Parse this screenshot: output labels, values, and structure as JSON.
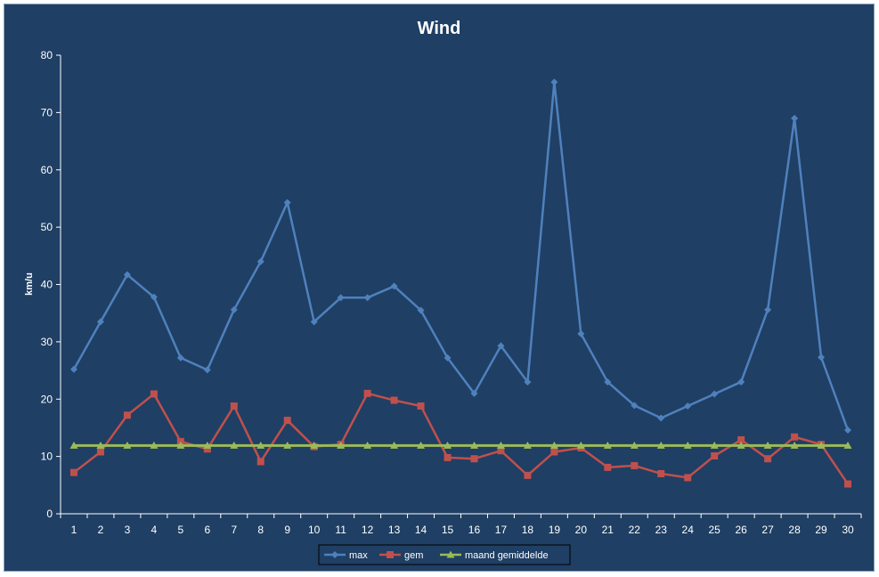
{
  "chart_data": {
    "type": "line",
    "title": "Wind",
    "xlabel": "",
    "ylabel": "km/u",
    "ylim": [
      0,
      80
    ],
    "yticks": [
      0,
      10,
      20,
      30,
      40,
      50,
      60,
      70,
      80
    ],
    "grid": false,
    "legend_position": "bottom",
    "categories": [
      "1",
      "2",
      "3",
      "4",
      "5",
      "6",
      "7",
      "8",
      "9",
      "10",
      "11",
      "12",
      "13",
      "14",
      "15",
      "16",
      "17",
      "18",
      "19",
      "20",
      "21",
      "22",
      "23",
      "24",
      "25",
      "26",
      "27",
      "28",
      "29",
      "30"
    ],
    "series": [
      {
        "name": "max",
        "color": "#4f81bd",
        "marker": "diamond",
        "values": [
          25.2,
          33.5,
          41.7,
          37.8,
          27.2,
          25.1,
          35.6,
          44.0,
          54.3,
          33.5,
          37.7,
          37.7,
          39.7,
          35.5,
          27.2,
          21.0,
          29.3,
          23.0,
          75.3,
          31.4,
          23.0,
          18.9,
          16.7,
          18.8,
          20.9,
          23.0,
          35.6,
          69.0,
          27.3,
          14.6
        ]
      },
      {
        "name": "gem",
        "color": "#c0504d",
        "marker": "square",
        "values": [
          7.2,
          10.8,
          17.2,
          20.9,
          12.6,
          11.3,
          18.8,
          9.1,
          16.3,
          11.7,
          12.1,
          21.0,
          19.8,
          18.8,
          9.8,
          9.6,
          11.0,
          6.7,
          10.8,
          11.5,
          8.1,
          8.4,
          7.0,
          6.3,
          10.1,
          12.9,
          9.6,
          13.4,
          12.1,
          5.2
        ]
      },
      {
        "name": "maand gemiddelde",
        "color": "#9bbb59",
        "marker": "triangle",
        "values": [
          11.9,
          11.9,
          11.9,
          11.9,
          11.9,
          11.9,
          11.9,
          11.9,
          11.9,
          11.9,
          11.9,
          11.9,
          11.9,
          11.9,
          11.9,
          11.9,
          11.9,
          11.9,
          11.9,
          11.9,
          11.9,
          11.9,
          11.9,
          11.9,
          11.9,
          11.9,
          11.9,
          11.9,
          11.9,
          11.9
        ]
      }
    ]
  }
}
